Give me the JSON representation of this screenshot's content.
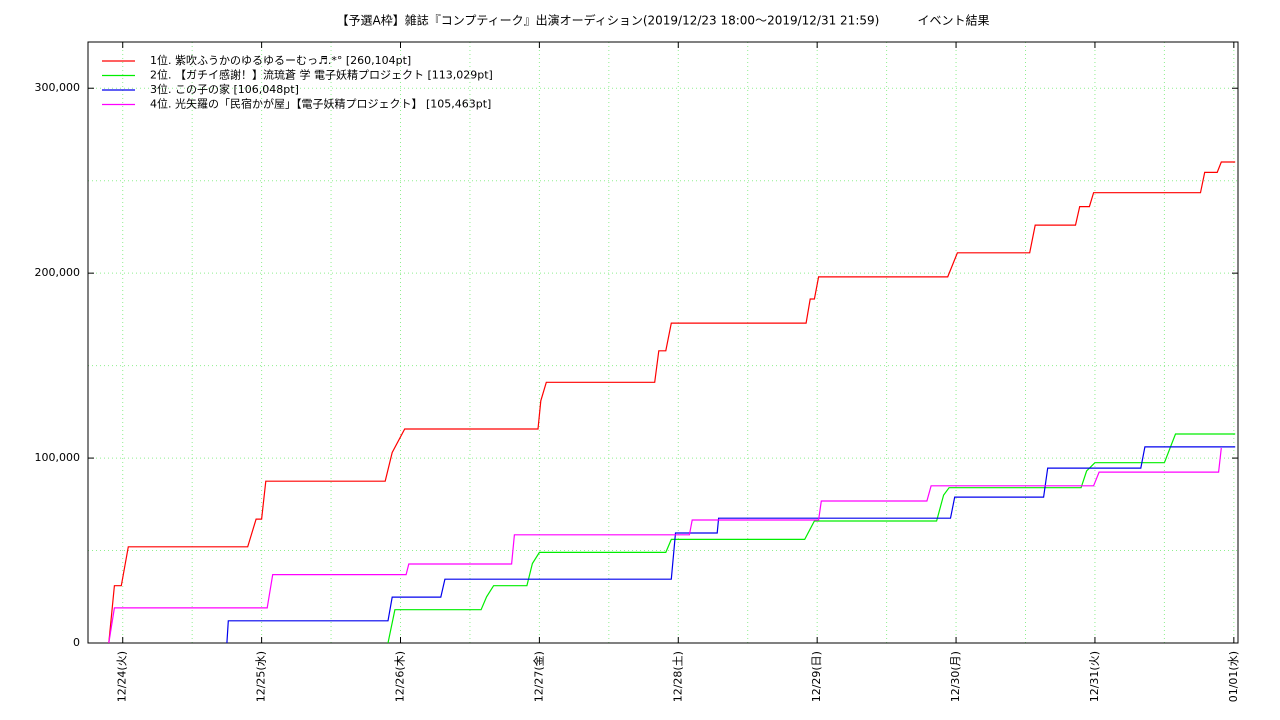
{
  "chart_data": {
    "type": "line",
    "title": "【予選A枠】雑誌『コンプティーク』出演オーディション(2019/12/23 18:00～2019/12/31 21:59)          イベント結果",
    "xlim": [
      -0.25,
      8.03
    ],
    "xticks": [
      {
        "value": 0,
        "label": "12/24(火)"
      },
      {
        "value": 1,
        "label": "12/25(水)"
      },
      {
        "value": 2,
        "label": "12/26(木)"
      },
      {
        "value": 3,
        "label": "12/27(金)"
      },
      {
        "value": 4,
        "label": "12/28(土)"
      },
      {
        "value": 5,
        "label": "12/29(日)"
      },
      {
        "value": 6,
        "label": "12/30(月)"
      },
      {
        "value": 7,
        "label": "12/31(火)"
      },
      {
        "value": 8,
        "label": "01/01(水)"
      }
    ],
    "xminorticks": [
      0.5,
      1.5,
      2.5,
      3.5,
      4.5,
      5.5,
      6.5,
      7.5
    ],
    "ylim": [
      0,
      325000
    ],
    "yticks": [
      0,
      {
        "value": 100000,
        "label": "100,000"
      },
      {
        "value": 200000,
        "label": "200,000"
      },
      {
        "value": 300000,
        "label": "300,000"
      }
    ],
    "yminorticks": [
      50000,
      150000,
      250000
    ],
    "grid": true,
    "legend": "top-left",
    "series": [
      {
        "name": "1位. 紫吹ふうかのゆるゆるーむっ♬.*° [260,104pt]",
        "color": "#ff0000",
        "x": [
          -0.1,
          -0.06,
          -0.01,
          0.04,
          0.9,
          0.96,
          1.0,
          1.03,
          1.89,
          1.94,
          2.03,
          2.99,
          3.01,
          3.05,
          3.83,
          3.86,
          3.91,
          3.95,
          4.92,
          4.95,
          4.98,
          5.01,
          5.94,
          6.01,
          6.53,
          6.57,
          6.86,
          6.89,
          6.96,
          6.99,
          7.76,
          7.79,
          7.88,
          7.91,
          8.01
        ],
        "values": [
          0,
          31000,
          31000,
          52000,
          52000,
          67000,
          67000,
          87500,
          87500,
          103000,
          115700,
          115700,
          131000,
          141000,
          141000,
          158000,
          158000,
          173000,
          173000,
          186000,
          186000,
          198000,
          198000,
          211000,
          211000,
          226000,
          226000,
          236000,
          236000,
          243500,
          243500,
          254500,
          254500,
          260104,
          260104
        ]
      },
      {
        "name": "2位. 【ガチイ感謝！】流琉蒼 学 電子妖精プロジェクト [113,029pt]",
        "color": "#00ee00",
        "x": [
          1.91,
          1.96,
          2.58,
          2.62,
          2.67,
          2.91,
          2.95,
          3.0,
          3.91,
          3.95,
          4.91,
          4.98,
          5.86,
          5.91,
          5.95,
          6.9,
          6.94,
          7.0,
          7.5,
          7.58,
          8.01
        ],
        "values": [
          0,
          18000,
          18000,
          25000,
          31000,
          31000,
          43000,
          49000,
          49000,
          56000,
          56000,
          66000,
          66000,
          80000,
          84000,
          84000,
          93000,
          97500,
          97500,
          113029,
          113029
        ]
      },
      {
        "name": "3位. この子の家 [106,048pt]",
        "color": "#0000ee",
        "x": [
          0.75,
          0.76,
          1.91,
          1.94,
          2.29,
          2.32,
          3.95,
          3.98,
          4.28,
          4.29,
          5.96,
          5.99,
          6.63,
          6.66,
          7.33,
          7.36,
          8.01
        ],
        "values": [
          0,
          12000,
          12000,
          24800,
          24800,
          34500,
          34500,
          59500,
          59500,
          67500,
          67500,
          78900,
          78900,
          94600,
          94600,
          106048,
          106048
        ]
      },
      {
        "name": "4位. 光矢羅の「民宿かが屋」【電子妖精プロジェクト】 [105,463pt]",
        "color": "#ff00ff",
        "x": [
          -0.1,
          -0.06,
          1.04,
          1.08,
          2.04,
          2.06,
          2.8,
          2.82,
          4.08,
          4.1,
          5.01,
          5.03,
          5.79,
          5.82,
          6.99,
          7.03,
          7.89,
          7.91
        ],
        "values": [
          0,
          19000,
          19000,
          37000,
          37000,
          42700,
          42700,
          58500,
          58500,
          66500,
          66500,
          76800,
          76800,
          85000,
          85000,
          92400,
          92400,
          105463
        ]
      }
    ]
  }
}
